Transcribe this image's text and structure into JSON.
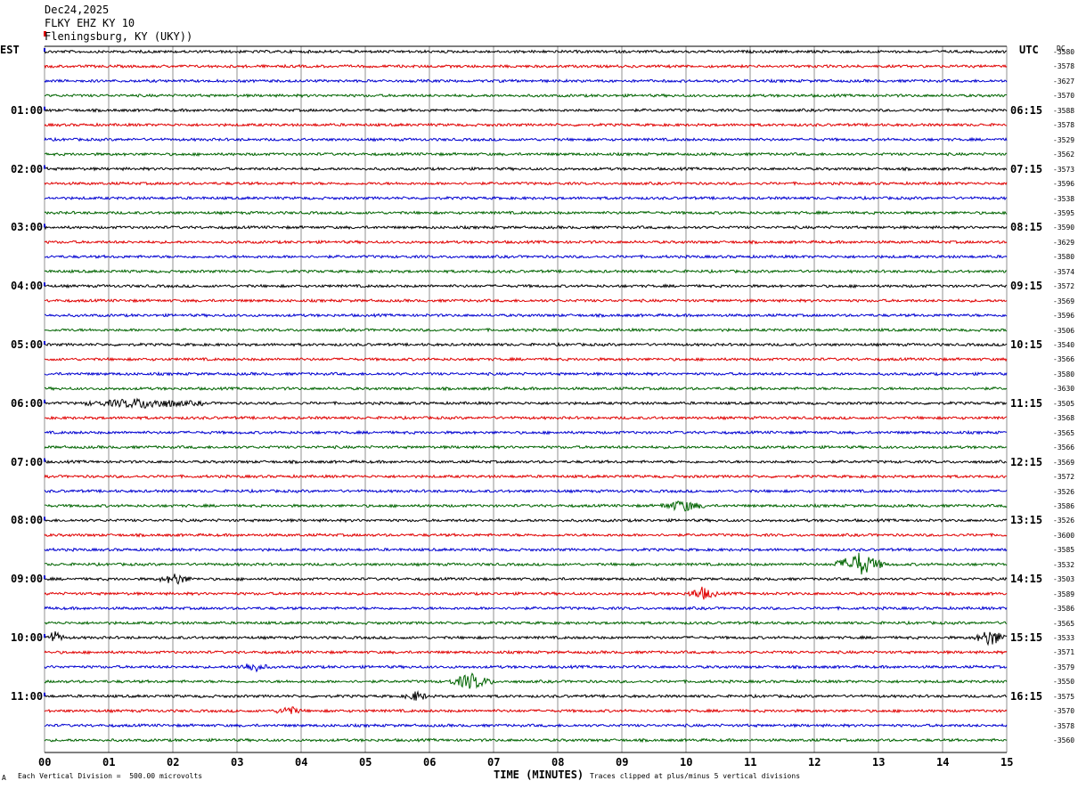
{
  "header": {
    "date": "Dec24,2025",
    "station": "FLKY EHZ KY 10",
    "location": "Fleningsburg, KY (UKY))"
  },
  "left_tz": "EST",
  "right_tz": "UTC",
  "dc_label": "DC",
  "footer": {
    "scale_note": "Each Vertical Division =  500.00 microvolts",
    "xlabel": "TIME (MINUTES)",
    "clip_note": "Traces clipped at plus/minus 5 vertical divisions",
    "corner_mark": "A"
  },
  "colors": {
    "trace_cycle": [
      "#000000",
      "#e00000",
      "#0000d0",
      "#006400"
    ],
    "grid": "#909090",
    "event_marker": "#e00000"
  },
  "chart_data": {
    "type": "line",
    "title": "Helicorder",
    "xlabel": "TIME (MINUTES)",
    "xlim": [
      0,
      15
    ],
    "x_ticks": [
      "00",
      "01",
      "02",
      "03",
      "04",
      "05",
      "06",
      "07",
      "08",
      "09",
      "10",
      "11",
      "12",
      "13",
      "14",
      "15"
    ],
    "grid": true,
    "rows_per_hour": 4,
    "total_rows": 48,
    "left_hour_labels": [
      "01:00",
      "02:00",
      "03:00",
      "04:00",
      "05:00",
      "06:00",
      "07:00",
      "08:00",
      "09:00",
      "10:00",
      "11:00"
    ],
    "right_hour_labels": [
      "06:15",
      "07:15",
      "08:15",
      "09:15",
      "10:15",
      "11:15",
      "12:15",
      "13:15",
      "14:15",
      "15:15",
      "16:15"
    ],
    "dc_offsets": [
      "-3580",
      "-3578",
      "-3627",
      "-3570",
      "-3588",
      "-3578",
      "-3529",
      "-3562",
      "-3573",
      "-3596",
      "-3538",
      "-3595",
      "-3590",
      "-3629",
      "-3580",
      "-3574",
      "-3572",
      "-3569",
      "-3596",
      "-3506",
      "-3540",
      "-3566",
      "-3580",
      "-3630",
      "-3505",
      "-3568",
      "-3565",
      "-3566",
      "-3569",
      "-3572",
      "-3526",
      "-3586",
      "-3526",
      "-3600",
      "-3585",
      "-3532",
      "-3503",
      "-3589",
      "-3586",
      "-3565",
      "-3533",
      "-3571",
      "-3579",
      "-3550",
      "-3575",
      "-3570",
      "-3578",
      "-3560"
    ],
    "events": [
      {
        "row": 35,
        "start_min": 12.3,
        "end_min": 13.1,
        "amplitude": 0.75
      },
      {
        "row": 40,
        "start_min": 14.5,
        "end_min": 15.0,
        "amplitude": 0.55
      },
      {
        "row": 43,
        "start_min": 6.3,
        "end_min": 7.0,
        "amplitude": 0.5
      },
      {
        "row": 36,
        "start_min": 1.8,
        "end_min": 2.3,
        "amplitude": 0.35
      },
      {
        "row": 37,
        "start_min": 10.0,
        "end_min": 10.5,
        "amplitude": 0.4
      },
      {
        "row": 31,
        "start_min": 9.6,
        "end_min": 10.3,
        "amplitude": 0.35
      },
      {
        "row": 24,
        "start_min": 0.6,
        "end_min": 2.5,
        "amplitude": 0.3
      },
      {
        "row": 45,
        "start_min": 3.6,
        "end_min": 4.0,
        "amplitude": 0.3
      },
      {
        "row": 44,
        "start_min": 5.6,
        "end_min": 6.0,
        "amplitude": 0.3
      },
      {
        "row": 42,
        "start_min": 3.0,
        "end_min": 3.5,
        "amplitude": 0.3
      },
      {
        "row": 40,
        "start_min": 0.0,
        "end_min": 0.3,
        "amplitude": 0.4
      }
    ]
  }
}
